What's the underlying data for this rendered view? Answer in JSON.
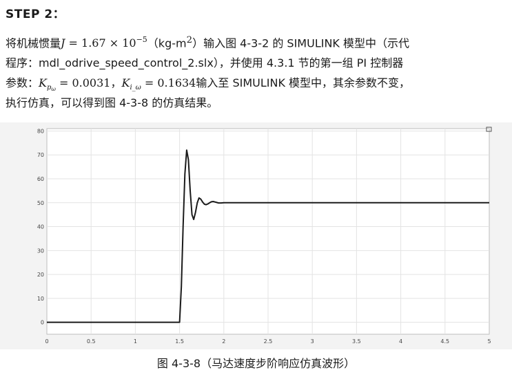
{
  "step_title": "STEP 2：",
  "paragraph": {
    "l1_a": "将机械惯量",
    "l1_math": {
      "var": "J",
      "eq": " = 1.67 × 10",
      "exp": "−5"
    },
    "l1_b": "（kg-m",
    "l1_sup": "2",
    "l1_c": "）输入图 4-3-2 的 SIMULINK 模型中（示代",
    "l2": "程序：mdl_odrive_speed_control_2.slx），并使用 4.3.1 节的第一组 PI 控制器",
    "l3_a": "参数：",
    "kp": {
      "var": "K",
      "sub": "p",
      "subsub": "ω",
      "value": " = 0.0031"
    },
    "l3_sep": "，",
    "ki": {
      "var": "K",
      "sub": "i_ω",
      "value": " = 0.1634"
    },
    "l3_b": "输入至 SIMULINK 模型中，其余参数不变，",
    "l4": "执行仿真，可以得到图 4-3-8 的仿真结果。"
  },
  "caption": "图 4-3-8（马达速度步阶响应仿真波形）",
  "chart_data": {
    "type": "line",
    "title": "",
    "xlabel": "",
    "ylabel": "",
    "xlim": [
      0,
      5
    ],
    "ylim": [
      -5,
      81
    ],
    "grid": true,
    "x_ticks": [
      "0",
      "0.5",
      "1",
      "1.5",
      "2",
      "2.5",
      "3",
      "3.5",
      "4",
      "4.5",
      "5"
    ],
    "y_ticks": [
      "0",
      "10",
      "20",
      "30",
      "40",
      "50",
      "60",
      "70",
      "80"
    ],
    "line_color": "#1a1a1a",
    "series": [
      {
        "x": [
          0,
          1.5,
          1.52,
          1.54,
          1.56,
          1.58,
          1.6,
          1.62,
          1.64,
          1.66,
          1.68,
          1.7,
          1.72,
          1.74,
          1.76,
          1.78,
          1.8,
          1.82,
          1.84,
          1.86,
          1.88,
          1.9,
          1.92,
          1.94,
          1.97,
          2.0,
          2.1,
          5
        ],
        "y": [
          0,
          0,
          15,
          40,
          62,
          72,
          68,
          55,
          45,
          43,
          46,
          50,
          52,
          51.5,
          50.3,
          49.4,
          49.2,
          49.5,
          50,
          50.4,
          50.5,
          50.3,
          50.1,
          49.9,
          49.9,
          50,
          50,
          50
        ]
      }
    ]
  }
}
